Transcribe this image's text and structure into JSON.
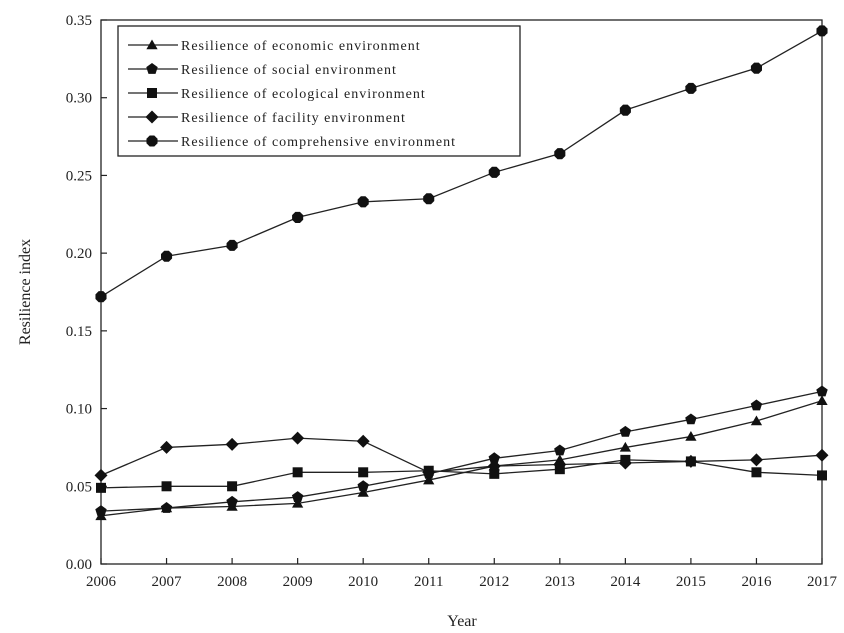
{
  "chart_data": {
    "type": "line",
    "xlabel": "Year",
    "ylabel": "Resilience index",
    "x": [
      2006,
      2007,
      2008,
      2009,
      2010,
      2011,
      2012,
      2013,
      2014,
      2015,
      2016,
      2017
    ],
    "xlim": [
      2006,
      2017
    ],
    "ylim": [
      0.0,
      0.35
    ],
    "yticks": [
      "0.00",
      "0.05",
      "0.10",
      "0.15",
      "0.20",
      "0.25",
      "0.30",
      "0.35"
    ],
    "xticks": [
      "2006",
      "2007",
      "2008",
      "2009",
      "2010",
      "2011",
      "2012",
      "2013",
      "2014",
      "2015",
      "2016",
      "2017"
    ],
    "grid": false,
    "legend_position": "top-left",
    "series": [
      {
        "name": "Resilience of economic environment",
        "marker": "triangle",
        "values": [
          0.031,
          0.036,
          0.037,
          0.039,
          0.046,
          0.054,
          0.063,
          0.067,
          0.075,
          0.082,
          0.092,
          0.105
        ]
      },
      {
        "name": "Resilience of social environment",
        "marker": "pentagon",
        "values": [
          0.034,
          0.036,
          0.04,
          0.043,
          0.05,
          0.058,
          0.068,
          0.073,
          0.085,
          0.093,
          0.102,
          0.111
        ]
      },
      {
        "name": "Resilience of ecological environment",
        "marker": "square",
        "values": [
          0.049,
          0.05,
          0.05,
          0.059,
          0.059,
          0.06,
          0.058,
          0.061,
          0.067,
          0.066,
          0.059,
          0.057
        ]
      },
      {
        "name": "Resilience of facility environment",
        "marker": "diamond",
        "values": [
          0.057,
          0.075,
          0.077,
          0.081,
          0.079,
          0.059,
          0.063,
          0.064,
          0.065,
          0.066,
          0.067,
          0.07
        ]
      },
      {
        "name": "Resilience of comprehensive environment",
        "marker": "octagon",
        "values": [
          0.172,
          0.198,
          0.205,
          0.223,
          0.233,
          0.235,
          0.252,
          0.264,
          0.292,
          0.306,
          0.319,
          0.343
        ]
      }
    ]
  }
}
